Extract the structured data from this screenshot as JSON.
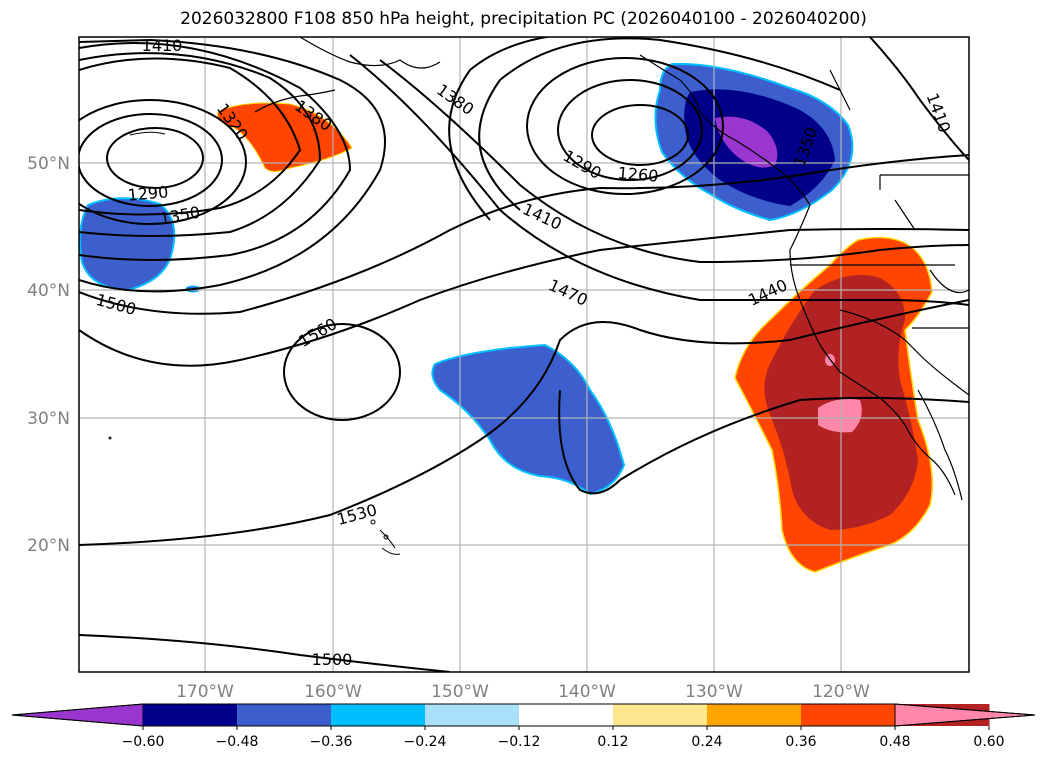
{
  "title": "2026032800 F108 850 hPa height, precipitation PC (2026040100 - 2026040200)",
  "lat_labels": [
    "50°N",
    "40°N",
    "30°N",
    "20°N"
  ],
  "lon_labels": [
    "170°W",
    "160°W",
    "150°W",
    "140°W",
    "130°W",
    "120°W"
  ],
  "contour_labels": [
    "1410",
    "1320",
    "1380",
    "1290",
    "1350",
    "1500",
    "1380",
    "1290",
    "1260",
    "1410",
    "1470",
    "1440",
    "1410",
    "1350",
    "1560",
    "1530",
    "1500"
  ],
  "colorbar": {
    "ticks": [
      "−0.60",
      "−0.48",
      "−0.36",
      "−0.24",
      "−0.12",
      "0.12",
      "0.24",
      "0.36",
      "0.48",
      "0.60"
    ],
    "colors": [
      "#9a35cf",
      "#000088",
      "#3c5fcd",
      "#00bfff",
      "#abe0fb",
      "#ffffff",
      "#fee88f",
      "#ffa500",
      "#ff4500",
      "#b22222",
      "#ff88aa"
    ]
  },
  "legend_colors": {
    "dark_purple": "#9a35cf",
    "navy": "#000088",
    "royal_blue": "#3c5fcd",
    "cyan": "#00bfff",
    "orange_red": "#ff4500",
    "firebrick": "#b22222",
    "pink": "#ff88aa",
    "gold": "#ffd700"
  }
}
